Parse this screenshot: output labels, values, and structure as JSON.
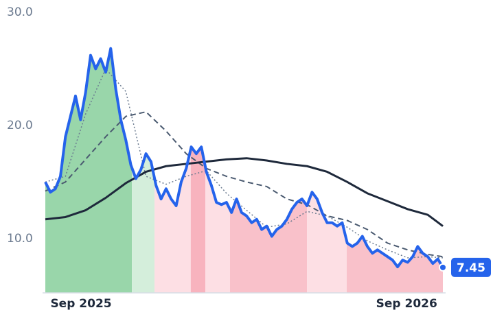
{
  "chart_data": {
    "type": "line",
    "xlim": [
      0,
      79
    ],
    "xticks": [
      {
        "value": 7.1,
        "label": "Sep 2025"
      },
      {
        "value": 71.8,
        "label": "Sep 2026"
      }
    ],
    "ylim": [
      5.2,
      30.6
    ],
    "yticks": [
      {
        "value": 10,
        "label": "10.0"
      },
      {
        "value": 20,
        "label": "20.0"
      },
      {
        "value": 30,
        "label": "30.0"
      }
    ],
    "grid": false,
    "regions": [
      {
        "start": 0,
        "end": 17.2,
        "color": "#99d6aa"
      },
      {
        "start": 17.2,
        "end": 21.7,
        "color": "#d4eedb"
      },
      {
        "start": 21.7,
        "end": 28.9,
        "color": "#fddfe4"
      },
      {
        "start": 28.9,
        "end": 31.8,
        "color": "#f8b3be"
      },
      {
        "start": 31.8,
        "end": 36.7,
        "color": "#fddfe4"
      },
      {
        "start": 36.7,
        "end": 52.0,
        "color": "#f9c1ca"
      },
      {
        "start": 52.0,
        "end": 59.9,
        "color": "#fddfe4"
      },
      {
        "start": 59.9,
        "end": 79,
        "color": "#f9c1ca"
      }
    ],
    "series": [
      {
        "color": "#2563eb",
        "style": "solid",
        "width": 4,
        "x": [
          0,
          1,
          2,
          3,
          4,
          5,
          6,
          7,
          8,
          9,
          10,
          11,
          12,
          13,
          14,
          15,
          16,
          17,
          18,
          19,
          20,
          21,
          22,
          23,
          24,
          25,
          26,
          27,
          28,
          29,
          30,
          31,
          32,
          33,
          34,
          35,
          36,
          37,
          38,
          39,
          40,
          41,
          42,
          43,
          44,
          45,
          46,
          47,
          48,
          49,
          50,
          51,
          52,
          53,
          54,
          55,
          56,
          57,
          58,
          59,
          60,
          61,
          62,
          63,
          64,
          65,
          66,
          67,
          68,
          69,
          70,
          71,
          72,
          73,
          74,
          75,
          76,
          77,
          78,
          79
        ],
        "values": [
          15.0,
          14.1,
          14.4,
          15.5,
          19.0,
          20.8,
          22.6,
          20.5,
          22.9,
          26.2,
          25.0,
          25.9,
          24.7,
          26.8,
          23.2,
          20.5,
          18.7,
          16.5,
          15.3,
          16.1,
          17.5,
          16.8,
          14.7,
          13.5,
          14.4,
          13.5,
          12.9,
          15.0,
          16.2,
          18.1,
          17.5,
          18.1,
          15.9,
          14.7,
          13.2,
          13.0,
          13.2,
          12.3,
          13.5,
          12.3,
          12.0,
          11.4,
          11.7,
          10.8,
          11.1,
          10.2,
          10.8,
          11.1,
          11.7,
          12.6,
          13.2,
          13.5,
          12.9,
          14.1,
          13.5,
          12.3,
          11.4,
          11.4,
          11.1,
          11.4,
          9.6,
          9.3,
          9.6,
          10.2,
          9.3,
          8.7,
          9.0,
          8.7,
          8.4,
          8.1,
          7.5,
          8.1,
          7.9,
          8.4,
          9.3,
          8.7,
          8.4,
          7.8,
          8.2,
          7.45
        ]
      },
      {
        "color": "#1e293b",
        "style": "solid",
        "width": 3,
        "x": [
          0,
          4,
          8,
          12,
          16,
          20,
          24,
          28,
          32,
          36,
          40,
          44,
          48,
          52,
          56,
          60,
          64,
          68,
          72,
          76,
          79
        ],
        "values": [
          11.7,
          11.9,
          12.5,
          13.6,
          14.9,
          15.9,
          16.4,
          16.6,
          16.8,
          17.0,
          17.1,
          16.9,
          16.6,
          16.4,
          15.9,
          15.0,
          14.0,
          13.3,
          12.6,
          12.1,
          11.1
        ]
      },
      {
        "color": "#4a5a70",
        "style": "dashed",
        "width": 2,
        "x": [
          0,
          4,
          8,
          12,
          16,
          20,
          24,
          28,
          32,
          36,
          40,
          44,
          48,
          52,
          56,
          60,
          64,
          68,
          72,
          76,
          79
        ],
        "values": [
          14.2,
          15.0,
          17.0,
          19.0,
          20.8,
          21.2,
          19.5,
          17.5,
          16.2,
          15.5,
          15.0,
          14.6,
          13.5,
          13.0,
          12.0,
          11.6,
          10.8,
          9.6,
          9.0,
          8.6,
          8.4
        ]
      },
      {
        "color": "#6b7b90",
        "style": "dotted",
        "width": 1.5,
        "x": [
          0,
          4,
          8,
          12,
          16,
          20,
          24,
          28,
          32,
          36,
          40,
          44,
          48,
          52,
          56,
          60,
          64,
          68,
          72,
          76,
          79
        ],
        "values": [
          15.0,
          15.5,
          21.0,
          25.0,
          23.0,
          15.5,
          14.8,
          15.5,
          16.0,
          14.0,
          12.5,
          11.0,
          11.3,
          12.4,
          12.0,
          11.0,
          9.8,
          9.0,
          8.3,
          8.4,
          8.3
        ]
      }
    ]
  }
}
